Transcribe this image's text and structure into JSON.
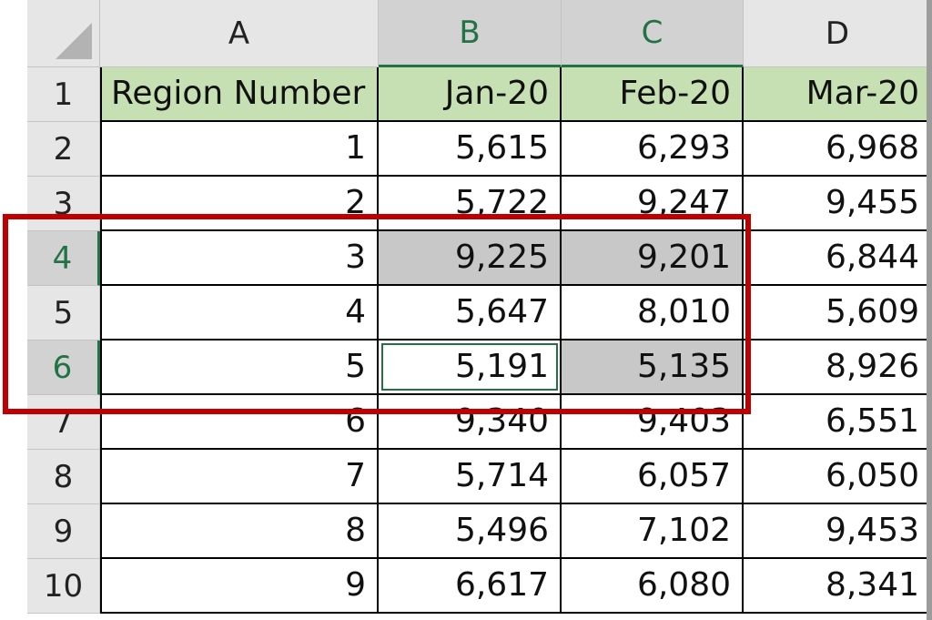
{
  "sheet": {
    "columns": [
      "A",
      "B",
      "C",
      "D"
    ],
    "selected_columns": [
      "B",
      "C"
    ],
    "selected_rows": [
      4,
      6
    ],
    "active_cell": "B6",
    "highlighted_cells": [
      "B4",
      "C4",
      "C6"
    ],
    "rows": [
      {
        "num": "1",
        "cells": [
          "Region Number",
          "Jan-20",
          "Feb-20",
          "Mar-20"
        ]
      },
      {
        "num": "2",
        "cells": [
          "1",
          "5,615",
          "6,293",
          "6,968"
        ]
      },
      {
        "num": "3",
        "cells": [
          "2",
          "5,722",
          "9,247",
          "9,455"
        ]
      },
      {
        "num": "4",
        "cells": [
          "3",
          "9,225",
          "9,201",
          "6,844"
        ]
      },
      {
        "num": "5",
        "cells": [
          "4",
          "5,647",
          "8,010",
          "5,609"
        ]
      },
      {
        "num": "6",
        "cells": [
          "5",
          "5,191",
          "5,135",
          "8,926"
        ]
      },
      {
        "num": "7",
        "cells": [
          "6",
          "9,340",
          "9,403",
          "6,551"
        ]
      },
      {
        "num": "8",
        "cells": [
          "7",
          "5,714",
          "6,057",
          "6,050"
        ]
      },
      {
        "num": "9",
        "cells": [
          "8",
          "5,496",
          "7,102",
          "9,453"
        ]
      },
      {
        "num": "10",
        "cells": [
          "9",
          "6,617",
          "6,080",
          "8,341"
        ]
      }
    ]
  },
  "colors": {
    "header_fill": "#c6e0b4",
    "selection_fill": "#c8c8c8",
    "excel_green": "#217346",
    "annotation_red": "#c00000"
  }
}
